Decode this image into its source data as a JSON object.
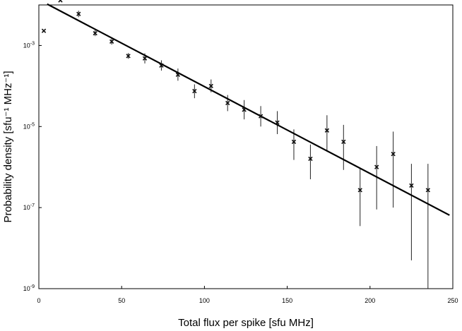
{
  "chart_data": {
    "type": "scatter",
    "xlabel": "Total flux per spike  [sfu MHz]",
    "ylabel": "Probability density  [sfu⁻¹ MHz⁻¹]",
    "xlim": [
      0,
      250
    ],
    "ylim": [
      1e-09,
      0.01
    ],
    "yscale": "log",
    "x_ticks": [
      0,
      50,
      100,
      150,
      200,
      250
    ],
    "x_tick_labels": [
      "0",
      "50",
      "100",
      "150",
      "200",
      "250"
    ],
    "y_ticks": [
      {
        "value": 0.001,
        "base": "10",
        "exp": "-3"
      },
      {
        "value": 1e-05,
        "base": "10",
        "exp": "-5"
      },
      {
        "value": 1e-07,
        "base": "10",
        "exp": "-7"
      },
      {
        "value": 1e-09,
        "base": "10",
        "exp": "-9"
      }
    ],
    "grid": false,
    "legend": "none",
    "series": [
      {
        "kind": "points_with_errorbars",
        "marker": "x",
        "color": "#111111",
        "points": [
          {
            "x": 3,
            "y": 0.0023,
            "lo": null,
            "hi": null
          },
          {
            "x": 13,
            "y": 0.013,
            "lo": null,
            "hi": null
          },
          {
            "x": 24,
            "y": 0.006,
            "lo": 0.005,
            "hi": 0.0072
          },
          {
            "x": 34,
            "y": 0.002,
            "lo": 0.0017,
            "hi": 0.0024
          },
          {
            "x": 44,
            "y": 0.00125,
            "lo": 0.00105,
            "hi": 0.0015
          },
          {
            "x": 54,
            "y": 0.00055,
            "lo": 0.00047,
            "hi": 0.00065
          },
          {
            "x": 64,
            "y": 0.00048,
            "lo": 0.00036,
            "hi": 0.00064
          },
          {
            "x": 74,
            "y": 0.00032,
            "lo": 0.00024,
            "hi": 0.00043
          },
          {
            "x": 84,
            "y": 0.00019,
            "lo": 0.000135,
            "hi": 0.00027
          },
          {
            "x": 94,
            "y": 7.5e-05,
            "lo": 5e-05,
            "hi": 0.00011
          },
          {
            "x": 104,
            "y": 0.0001,
            "lo": 7e-05,
            "hi": 0.000145
          },
          {
            "x": 114,
            "y": 3.8e-05,
            "lo": 2.4e-05,
            "hi": 6e-05
          },
          {
            "x": 124,
            "y": 2.6e-05,
            "lo": 1.5e-05,
            "hi": 4.5e-05
          },
          {
            "x": 134,
            "y": 1.8e-05,
            "lo": 1e-05,
            "hi": 3.2e-05
          },
          {
            "x": 144,
            "y": 1.25e-05,
            "lo": 6.5e-06,
            "hi": 2.4e-05
          },
          {
            "x": 154,
            "y": 4.2e-06,
            "lo": 1.5e-06,
            "hi": 8.5e-06
          },
          {
            "x": 164,
            "y": 1.6e-06,
            "lo": 5e-07,
            "hi": 3.6e-06
          },
          {
            "x": 174,
            "y": 8e-06,
            "lo": 2.4e-06,
            "hi": 1.9e-05
          },
          {
            "x": 184,
            "y": 4.2e-06,
            "lo": 8.5e-07,
            "hi": 1.1e-05
          },
          {
            "x": 194,
            "y": 2.7e-07,
            "lo": 3.5e-08,
            "hi": 9e-07
          },
          {
            "x": 204,
            "y": 1e-06,
            "lo": 9e-08,
            "hi": 3.3e-06
          },
          {
            "x": 214,
            "y": 2.1e-06,
            "lo": 1e-07,
            "hi": 7.5e-06
          },
          {
            "x": 225,
            "y": 3.5e-07,
            "lo": 5e-09,
            "hi": 1.2e-06
          },
          {
            "x": 235,
            "y": 2.7e-07,
            "lo": 1e-09,
            "hi": 1.2e-06
          }
        ]
      },
      {
        "kind": "fit_line",
        "color": "#000000",
        "x": [
          5,
          248
        ],
        "y": [
          0.0105,
          6.5e-08
        ]
      }
    ]
  }
}
